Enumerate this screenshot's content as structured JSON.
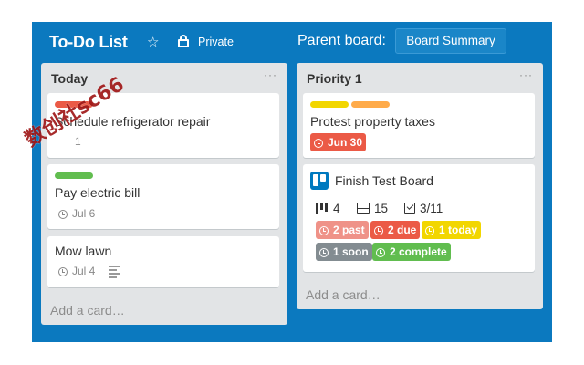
{
  "board": {
    "title": "To-Do List",
    "star_icon": "star-icon",
    "visibility_icon": "lock-icon",
    "visibility": "Private",
    "parent_label": "Parent board:",
    "parent_button": "Board Summary",
    "background": "#0b79bf"
  },
  "lists": [
    {
      "title": "Today",
      "menu": "···",
      "add_card": "Add a card…",
      "cards": [
        {
          "title": "Schedule refrigerator repair",
          "labels": [
            "#eb5a46"
          ],
          "meta": "1"
        },
        {
          "title": "Pay electric bill",
          "labels": [
            "#61bd4f"
          ],
          "due": "Jul 6"
        },
        {
          "title": "Mow lawn",
          "due": "Jul 4",
          "has_description": true
        }
      ]
    },
    {
      "title": "Priority 1",
      "menu": "···",
      "add_card": "Add a card…",
      "cards": [
        {
          "title": "Protest property taxes",
          "labels": [
            "#f2d600",
            "#ffab4a"
          ],
          "due_badge": "Jun 30",
          "due_color": "#eb5a46"
        },
        {
          "title": "Finish Test Board",
          "stats": {
            "lists": "4",
            "cards": "15",
            "checklist": "3/11"
          },
          "badges": [
            {
              "text": "2 past",
              "color": "#ef9288"
            },
            {
              "text": "2 due",
              "color": "#eb5a46"
            },
            {
              "text": "1 today",
              "color": "#f2d600"
            },
            {
              "text": "1 soon",
              "color": "#838c91"
            },
            {
              "text": "2 complete",
              "color": "#61bd4f"
            }
          ]
        }
      ]
    }
  ],
  "watermark": "数创社sc66"
}
